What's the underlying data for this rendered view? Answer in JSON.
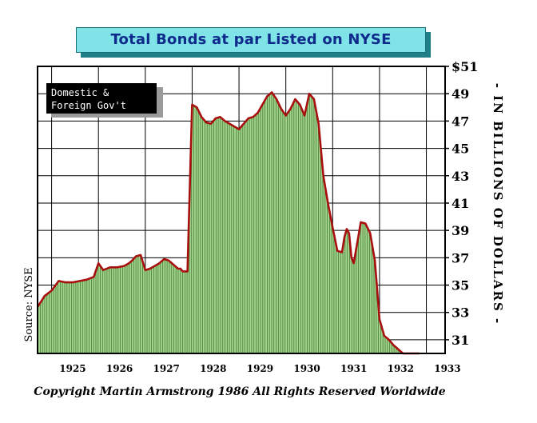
{
  "chart_data": {
    "type": "area",
    "title": "Total Bonds at par Listed on NYSE",
    "ylabel": "- IN BILLIONS OF DOLLARS -",
    "source": "Source: NYSE",
    "legend_note": "Domestic & Foreign Gov't",
    "copyright": "Copyright Martin Armstrong 1986 All Rights Reserved Worldwide",
    "x_ticks": [
      "1925",
      "1926",
      "1927",
      "1928",
      "1929",
      "1930",
      "1931",
      "1932",
      "1933"
    ],
    "y_ticks": [
      "$51",
      "49",
      "47",
      "45",
      "43",
      "41",
      "39",
      "37",
      "35",
      "33",
      "31"
    ],
    "xlim": [
      1924.6,
      1933.3
    ],
    "ylim": [
      30.0,
      51.0
    ],
    "colors": {
      "fill": "#9fd48a",
      "line": "#a81010",
      "bar": "#4b7a3c",
      "title_bg": "#7fe3e8",
      "title_text": "#102a8c"
    },
    "series": [
      {
        "x": [
          1924.6,
          1924.75,
          1924.9,
          1925.05,
          1925.2,
          1925.35,
          1925.5,
          1925.65,
          1925.8,
          1925.9,
          1926.0,
          1926.15,
          1926.3,
          1926.45,
          1926.55,
          1926.62,
          1926.7,
          1926.8,
          1926.9,
          1927.0,
          1927.1,
          1927.2,
          1927.3,
          1927.4,
          1927.5,
          1927.6,
          1927.65,
          1927.7,
          1927.75,
          1927.8,
          1927.9,
          1928.0,
          1928.1,
          1928.2,
          1928.3,
          1928.4,
          1928.5,
          1928.6,
          1928.75,
          1928.9,
          1929.0,
          1929.1,
          1929.2,
          1929.3,
          1929.4,
          1929.5,
          1929.6,
          1929.7,
          1929.8,
          1929.9,
          1930.0,
          1930.1,
          1930.2,
          1930.3,
          1930.4,
          1930.5,
          1930.6,
          1930.7,
          1930.8,
          1930.9,
          1931.0,
          1931.1,
          1931.15,
          1931.2,
          1931.25,
          1931.3,
          1931.35,
          1931.4,
          1931.45,
          1931.5,
          1931.6,
          1931.7,
          1931.8,
          1931.9,
          1932.0,
          1932.1,
          1932.2,
          1932.3,
          1932.4,
          1932.5,
          1932.55,
          1932.6,
          1932.65,
          1932.7,
          1932.75
        ],
        "y": [
          33.4,
          34.2,
          34.6,
          35.3,
          35.2,
          35.2,
          35.3,
          35.4,
          35.6,
          36.6,
          36.1,
          36.3,
          36.3,
          36.4,
          36.6,
          36.8,
          37.1,
          37.2,
          36.1,
          36.2,
          36.4,
          36.6,
          36.9,
          36.8,
          36.5,
          36.2,
          36.2,
          36.0,
          36.0,
          36.0,
          48.2,
          48.0,
          47.3,
          46.9,
          46.8,
          47.2,
          47.3,
          47.0,
          46.7,
          46.4,
          46.8,
          47.2,
          47.3,
          47.6,
          48.2,
          48.8,
          49.1,
          48.6,
          47.9,
          47.4,
          47.9,
          48.6,
          48.2,
          47.4,
          49.0,
          48.6,
          46.8,
          43.0,
          41.0,
          39.2,
          37.5,
          37.4,
          38.5,
          39.1,
          38.8,
          37.0,
          36.6,
          37.6,
          38.6,
          39.6,
          39.5,
          38.8,
          36.8,
          32.5,
          31.3,
          31.0,
          30.6,
          30.3,
          30.0,
          30.0,
          30.0,
          30.0,
          30.0,
          30.0,
          30.0
        ]
      }
    ]
  }
}
